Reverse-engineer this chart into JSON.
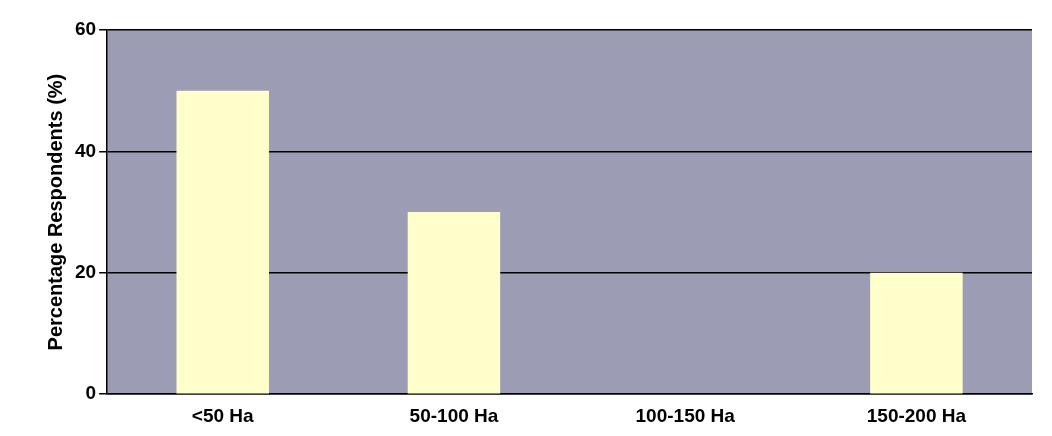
{
  "chart_data": {
    "type": "bar",
    "ylabel": "Percentage Respondents (%)",
    "categories": [
      "<50 Ha",
      "50-100 Ha",
      "100-150 Ha",
      "150-200 Ha"
    ],
    "values": [
      50,
      30,
      0,
      20
    ],
    "color": "#ffffcc",
    "ylim": [
      0,
      60
    ],
    "yticks": [
      0,
      20,
      40,
      60
    ],
    "grid": "y",
    "legend": false
  }
}
